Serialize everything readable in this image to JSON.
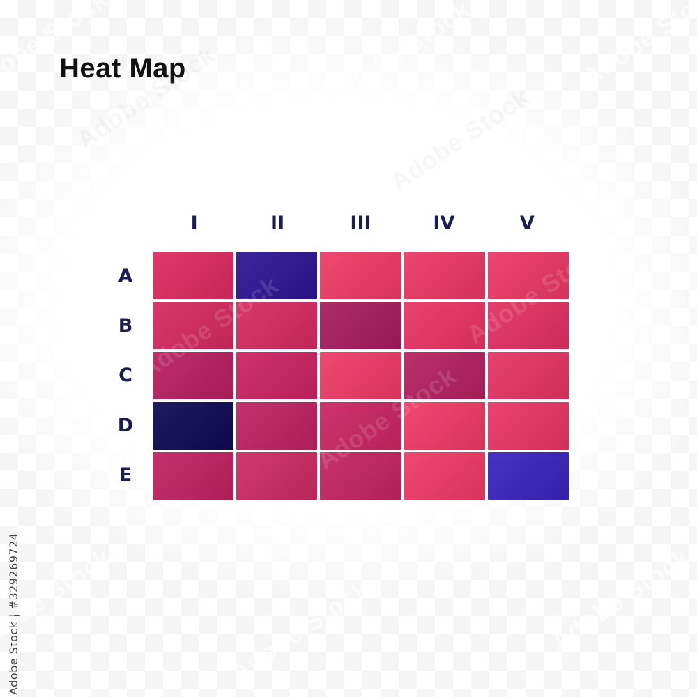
{
  "watermark": {
    "diagonal_text": "Adobe Stock",
    "vertical_text": "Adobe Stock | #329269724"
  },
  "chart_data": {
    "type": "heatmap",
    "title": "Heat Map",
    "title_color": "#111111",
    "columns": [
      "I",
      "II",
      "III",
      "IV",
      "V"
    ],
    "rows": [
      "A",
      "B",
      "C",
      "D",
      "E"
    ],
    "cell_colors": [
      [
        "#dd2a61",
        "#2c1594",
        "#ef3a65",
        "#ea3765",
        "#eb3866"
      ],
      [
        "#d62961",
        "#d62a62",
        "#a81b60",
        "#ea3365",
        "#e23063"
      ],
      [
        "#b81f5f",
        "#cb2361",
        "#ee3a66",
        "#b5205f",
        "#e53364"
      ],
      [
        "#0e0a52",
        "#bf2260",
        "#cb2562",
        "#ee3a66",
        "#e83566"
      ],
      [
        "#c12260",
        "#cd2a63",
        "#c52361",
        "#ee3a67",
        "#3a23bd"
      ]
    ],
    "label_color": "#1b1c52",
    "grid_gap_color": "#ffffff",
    "legend_position": "none",
    "palette_semantics": {
      "high": "#ee3a66",
      "mid": "#c22260",
      "low": "#a81b60",
      "special_indigo": "#2c1594",
      "special_navy": "#0e0a52",
      "special_violet": "#3a23bd"
    }
  }
}
